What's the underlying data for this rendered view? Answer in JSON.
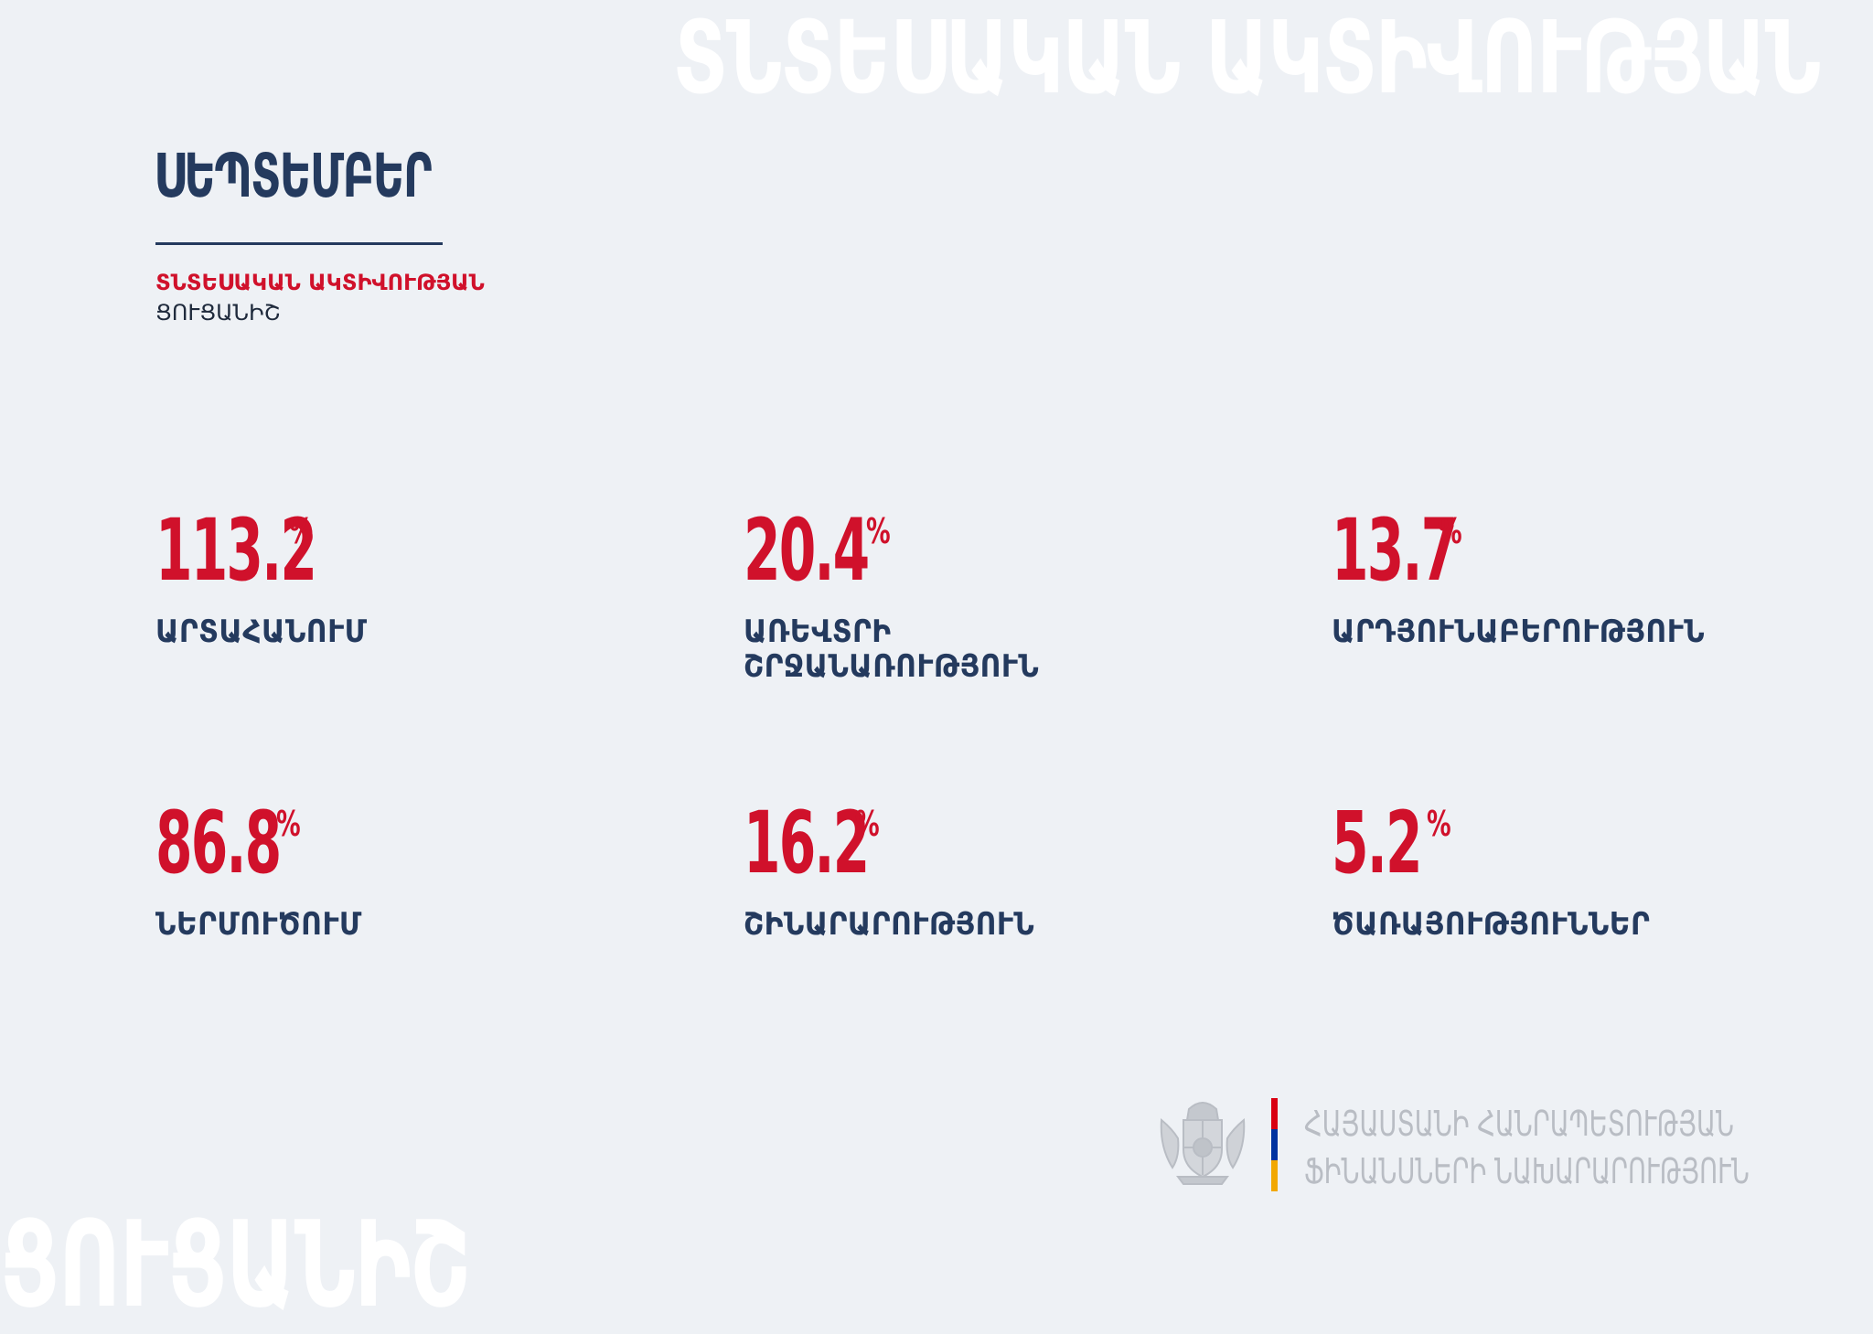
{
  "watermark": {
    "top": "ՏՆՏԵՍԱԿԱՆ ԱԿՏԻՎՈՒԹՅԱՆ",
    "bottom": "ՑՈՒՑԱՆԻՇ"
  },
  "header": {
    "title": "ՍԵՊՏԵՄԲԵՐ",
    "subtitle_red": "ՏՆՏԵՍԱԿԱՆ ԱԿՏԻՎՈՒԹՅԱՆ",
    "subtitle_dark": "ՑՈՒՑԱՆԻՇ"
  },
  "stats": [
    {
      "value": "113.2",
      "unit": "%",
      "label": "ԱՐՏԱՀԱՆՈՒՄ"
    },
    {
      "value": "20.4",
      "unit": "%",
      "label": "ԱՌԵՎՏՐԻ ՇՐՋԱՆԱՌՈՒԹՅՈՒՆ"
    },
    {
      "value": "13.7",
      "unit": "%",
      "label": "ԱՐԴՅՈՒՆԱԲԵՐՈՒԹՅՈՒՆ"
    },
    {
      "value": "86.8",
      "unit": "%",
      "label": "ՆԵՐՄՈՒԾՈՒՄ"
    },
    {
      "value": "16.2",
      "unit": "%",
      "label": "ՇԻՆԱՐԱՐՈՒԹՅՈՒՆ"
    },
    {
      "value": "5.2",
      "unit": "%",
      "label": "ԾԱՌԱՅՈՒԹՅՈՒՆՆԵՐ"
    }
  ],
  "footer": {
    "emblem_icon": "armenia-coat-of-arms-icon",
    "flag_colors": [
      "#d90012",
      "#0033a0",
      "#f2a800"
    ],
    "ministry_line1": "ՀԱՅԱՍՏԱՆԻ ՀԱՆՐԱՊԵՏՈՒԹՅԱՆ",
    "ministry_line2": "ՖԻՆԱՆՍՆԵՐԻ ՆԱԽԱՐԱՐՈՒԹՅՈՒՆ"
  },
  "colors": {
    "accent_red": "#d0112b",
    "navy": "#243a5e",
    "background": "#eef1f5"
  }
}
